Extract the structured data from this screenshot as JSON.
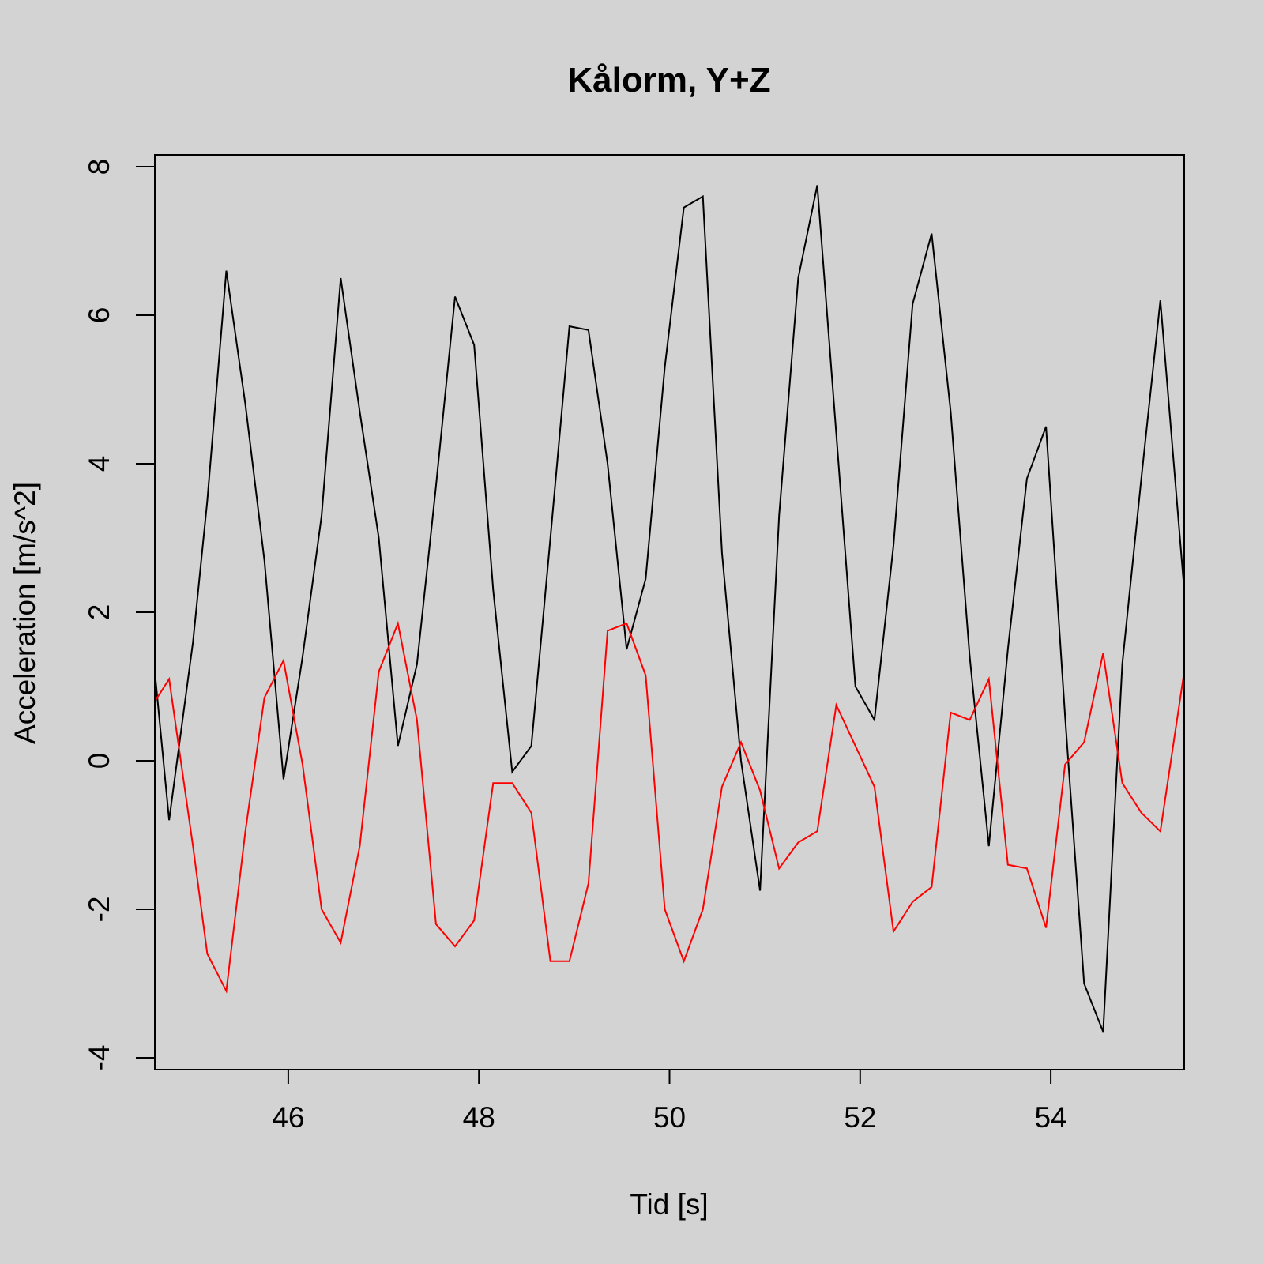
{
  "chart_data": {
    "type": "line",
    "title": "Kålorm, Y+Z",
    "xlabel": "Tid [s]",
    "ylabel": "Acceleration [m/s^2]",
    "xlim": [
      44.6,
      55.4
    ],
    "ylim": [
      -4.16,
      8.16
    ],
    "xticks": [
      46,
      48,
      50,
      52,
      54
    ],
    "yticks": [
      -4,
      -2,
      0,
      2,
      4,
      6,
      8
    ],
    "grid": false,
    "legend": "none",
    "x": [
      44.6,
      44.75,
      45.0,
      45.15,
      45.35,
      45.55,
      45.75,
      45.95,
      46.15,
      46.35,
      46.55,
      46.75,
      46.95,
      47.15,
      47.35,
      47.55,
      47.75,
      47.95,
      48.15,
      48.35,
      48.55,
      48.75,
      48.95,
      49.15,
      49.35,
      49.55,
      49.75,
      49.95,
      50.15,
      50.35,
      50.55,
      50.75,
      50.95,
      51.15,
      51.35,
      51.55,
      51.75,
      51.95,
      52.15,
      52.35,
      52.55,
      52.75,
      52.95,
      53.15,
      53.35,
      53.55,
      53.75,
      53.95,
      54.15,
      54.35,
      54.55,
      54.75,
      54.95,
      55.15,
      55.4
    ],
    "series": [
      {
        "color": "#000000",
        "values": [
          1.2,
          -0.8,
          1.6,
          3.5,
          6.6,
          4.8,
          2.7,
          -0.25,
          1.4,
          3.3,
          6.5,
          4.7,
          3.0,
          0.2,
          1.3,
          3.7,
          6.25,
          5.6,
          2.3,
          -0.15,
          0.2,
          3.0,
          5.85,
          5.8,
          4.0,
          1.5,
          2.45,
          5.3,
          7.45,
          7.6,
          2.8,
          0.0,
          -1.75,
          3.3,
          6.5,
          7.75,
          4.4,
          1.0,
          0.55,
          2.9,
          6.15,
          7.1,
          4.7,
          1.4,
          -1.15,
          1.5,
          3.8,
          4.5,
          0.6,
          -3.0,
          -3.65,
          1.3,
          3.8,
          6.2,
          2.3
        ]
      },
      {
        "color": "#ff0000",
        "values": [
          0.8,
          1.1,
          -1.15,
          -2.6,
          -3.1,
          -0.95,
          0.85,
          1.35,
          -0.05,
          -2.0,
          -2.45,
          -1.15,
          1.2,
          1.85,
          0.55,
          -2.2,
          -2.5,
          -2.15,
          -0.3,
          -0.3,
          -0.7,
          -2.7,
          -2.7,
          -1.65,
          1.75,
          1.85,
          1.15,
          -2.0,
          -2.7,
          -2.0,
          -0.35,
          0.25,
          -0.4,
          -1.45,
          -1.1,
          -0.95,
          0.75,
          0.2,
          -0.35,
          -2.3,
          -1.9,
          -1.7,
          0.65,
          0.55,
          1.1,
          -1.4,
          -1.45,
          -2.25,
          -0.05,
          0.25,
          1.45,
          -0.3,
          -0.7,
          -0.95,
          1.2
        ]
      }
    ]
  }
}
